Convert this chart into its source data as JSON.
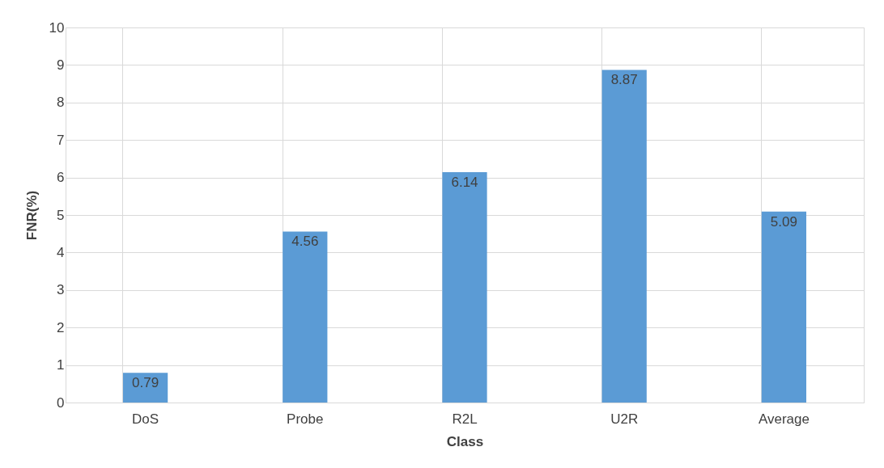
{
  "chart_data": {
    "type": "bar",
    "xlabel": "Class",
    "ylabel": "FNR(%)",
    "categories": [
      "DoS",
      "Probe",
      "R2L",
      "U2R",
      "Average"
    ],
    "values": [
      0.79,
      4.56,
      6.14,
      8.87,
      5.09
    ],
    "color": "#5b9bd5",
    "ylim": [
      0,
      10
    ],
    "yticks": [
      0,
      1,
      2,
      3,
      4,
      5,
      6,
      7,
      8,
      9,
      10
    ],
    "grid": true,
    "data_labels": true
  }
}
